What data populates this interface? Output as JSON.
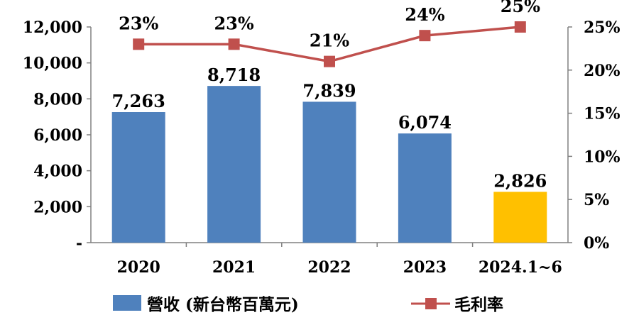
{
  "chart_data": {
    "type": "bar",
    "categories": [
      "2020",
      "2021",
      "2022",
      "2023",
      "2024.1~6"
    ],
    "series": [
      {
        "name": "營收 (新台幣百萬元)",
        "type": "bar",
        "axis": "left",
        "values": [
          7263,
          8718,
          7839,
          6074,
          2826
        ],
        "labels": [
          "7,263",
          "8,718",
          "7,839",
          "6,074",
          "2,826"
        ],
        "colors": [
          "#4f81bd",
          "#4f81bd",
          "#4f81bd",
          "#4f81bd",
          "#ffc000"
        ]
      },
      {
        "name": "毛利率",
        "type": "line",
        "axis": "right",
        "values": [
          23,
          23,
          21,
          24,
          25
        ],
        "labels": [
          "23%",
          "23%",
          "21%",
          "24%",
          "25%"
        ],
        "color": "#c0504d"
      }
    ],
    "y_left": {
      "ylim": [
        0,
        12000
      ],
      "ticks": [
        0,
        2000,
        4000,
        6000,
        8000,
        10000,
        12000
      ],
      "tick_labels": [
        "-",
        "2,000",
        "4,000",
        "6,000",
        "8,000",
        "10,000",
        "12,000"
      ]
    },
    "y_right": {
      "ylim": [
        0,
        25
      ],
      "ticks": [
        0,
        5,
        10,
        15,
        20,
        25
      ],
      "tick_labels": [
        "0%",
        "5%",
        "10%",
        "15%",
        "20%",
        "25%"
      ]
    },
    "grid": false,
    "legend_position": "bottom"
  }
}
